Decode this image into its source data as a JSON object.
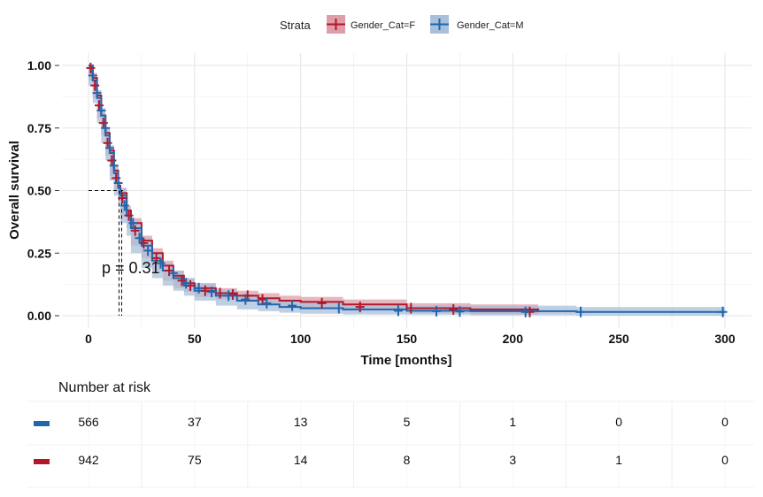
{
  "legend": {
    "title": "Strata",
    "items": [
      {
        "label": "Gender_Cat=F",
        "color": "#B2182B",
        "fill": "#DF9DA8"
      },
      {
        "label": "Gender_Cat=M",
        "color": "#2166AC",
        "fill": "#A9C0DB"
      }
    ]
  },
  "p_value": "p = 0.31",
  "risk_table": {
    "title": "Number at risk",
    "rows": [
      {
        "color": "#2166AC",
        "values": [
          "566",
          "37",
          "13",
          "5",
          "1",
          "0",
          "0"
        ]
      },
      {
        "color": "#B2182B",
        "values": [
          "942",
          "75",
          "14",
          "8",
          "3",
          "1",
          "0"
        ]
      }
    ]
  },
  "chart_data": {
    "type": "line",
    "xlabel": "Time [months]",
    "ylabel": "Overall survival",
    "xlim": [
      0,
      300
    ],
    "ylim": [
      0,
      1
    ],
    "x_ticks": [
      "0",
      "50",
      "100",
      "150",
      "200",
      "250",
      "300"
    ],
    "y_ticks": [
      "0.00",
      "0.25",
      "0.50",
      "0.75",
      "1.00"
    ],
    "median_survival_months": 15,
    "series": [
      {
        "name": "Gender_Cat=F",
        "color": "#B2182B",
        "band": "#DF9DA8",
        "x": [
          0,
          2,
          4,
          6,
          8,
          10,
          12,
          14,
          15,
          18,
          20,
          25,
          30,
          35,
          40,
          45,
          50,
          60,
          70,
          80,
          90,
          100,
          120,
          150,
          180,
          212
        ],
        "y": [
          1.0,
          0.95,
          0.88,
          0.8,
          0.73,
          0.66,
          0.58,
          0.52,
          0.49,
          0.42,
          0.37,
          0.3,
          0.25,
          0.2,
          0.16,
          0.13,
          0.11,
          0.09,
          0.08,
          0.07,
          0.06,
          0.055,
          0.045,
          0.03,
          0.025,
          0.015
        ],
        "lower": [
          1.0,
          0.94,
          0.87,
          0.79,
          0.72,
          0.64,
          0.56,
          0.5,
          0.47,
          0.4,
          0.35,
          0.28,
          0.23,
          0.18,
          0.14,
          0.11,
          0.095,
          0.075,
          0.065,
          0.055,
          0.045,
          0.04,
          0.03,
          0.02,
          0.012,
          0.005
        ],
        "upper": [
          1.0,
          0.97,
          0.9,
          0.82,
          0.75,
          0.68,
          0.6,
          0.54,
          0.51,
          0.44,
          0.39,
          0.32,
          0.27,
          0.22,
          0.18,
          0.15,
          0.13,
          0.11,
          0.1,
          0.09,
          0.08,
          0.075,
          0.065,
          0.05,
          0.045,
          0.04
        ],
        "censor_x": [
          1,
          3,
          5,
          7,
          9,
          11,
          13,
          16,
          19,
          22,
          26,
          32,
          38,
          44,
          48,
          55,
          62,
          68,
          75,
          82,
          110,
          128,
          152,
          172,
          208
        ],
        "censor_y": [
          0.99,
          0.92,
          0.84,
          0.77,
          0.69,
          0.62,
          0.55,
          0.47,
          0.4,
          0.34,
          0.29,
          0.23,
          0.18,
          0.14,
          0.12,
          0.1,
          0.09,
          0.085,
          0.08,
          0.065,
          0.05,
          0.035,
          0.03,
          0.025,
          0.015
        ]
      },
      {
        "name": "Gender_Cat=M",
        "color": "#2166AC",
        "band": "#A9C0DB",
        "x": [
          0,
          2,
          4,
          6,
          8,
          10,
          12,
          14,
          15,
          18,
          20,
          25,
          30,
          35,
          40,
          45,
          50,
          60,
          70,
          80,
          90,
          100,
          120,
          150,
          180,
          230,
          300
        ],
        "y": [
          1.0,
          0.94,
          0.87,
          0.8,
          0.72,
          0.65,
          0.57,
          0.51,
          0.48,
          0.4,
          0.35,
          0.28,
          0.22,
          0.18,
          0.15,
          0.12,
          0.1,
          0.08,
          0.06,
          0.045,
          0.035,
          0.03,
          0.025,
          0.02,
          0.018,
          0.015,
          0.015
        ],
        "lower": [
          1.0,
          0.92,
          0.85,
          0.77,
          0.69,
          0.62,
          0.54,
          0.48,
          0.45,
          0.37,
          0.32,
          0.25,
          0.19,
          0.15,
          0.12,
          0.1,
          0.08,
          0.06,
          0.04,
          0.025,
          0.018,
          0.012,
          0.008,
          0.005,
          0.004,
          0.002,
          0.0
        ],
        "upper": [
          1.0,
          0.96,
          0.9,
          0.83,
          0.75,
          0.68,
          0.6,
          0.54,
          0.51,
          0.43,
          0.38,
          0.31,
          0.25,
          0.21,
          0.18,
          0.15,
          0.13,
          0.105,
          0.085,
          0.07,
          0.06,
          0.055,
          0.048,
          0.042,
          0.04,
          0.035,
          0.035
        ],
        "censor_x": [
          2,
          4,
          6,
          8,
          10,
          12,
          14,
          17,
          21,
          24,
          28,
          34,
          40,
          46,
          52,
          58,
          66,
          74,
          84,
          96,
          118,
          146,
          164,
          175,
          206,
          232,
          299
        ],
        "censor_y": [
          0.96,
          0.89,
          0.82,
          0.75,
          0.67,
          0.6,
          0.53,
          0.44,
          0.37,
          0.31,
          0.26,
          0.21,
          0.17,
          0.13,
          0.11,
          0.095,
          0.08,
          0.065,
          0.05,
          0.04,
          0.03,
          0.02,
          0.018,
          0.017,
          0.015,
          0.015,
          0.015
        ]
      }
    ]
  }
}
